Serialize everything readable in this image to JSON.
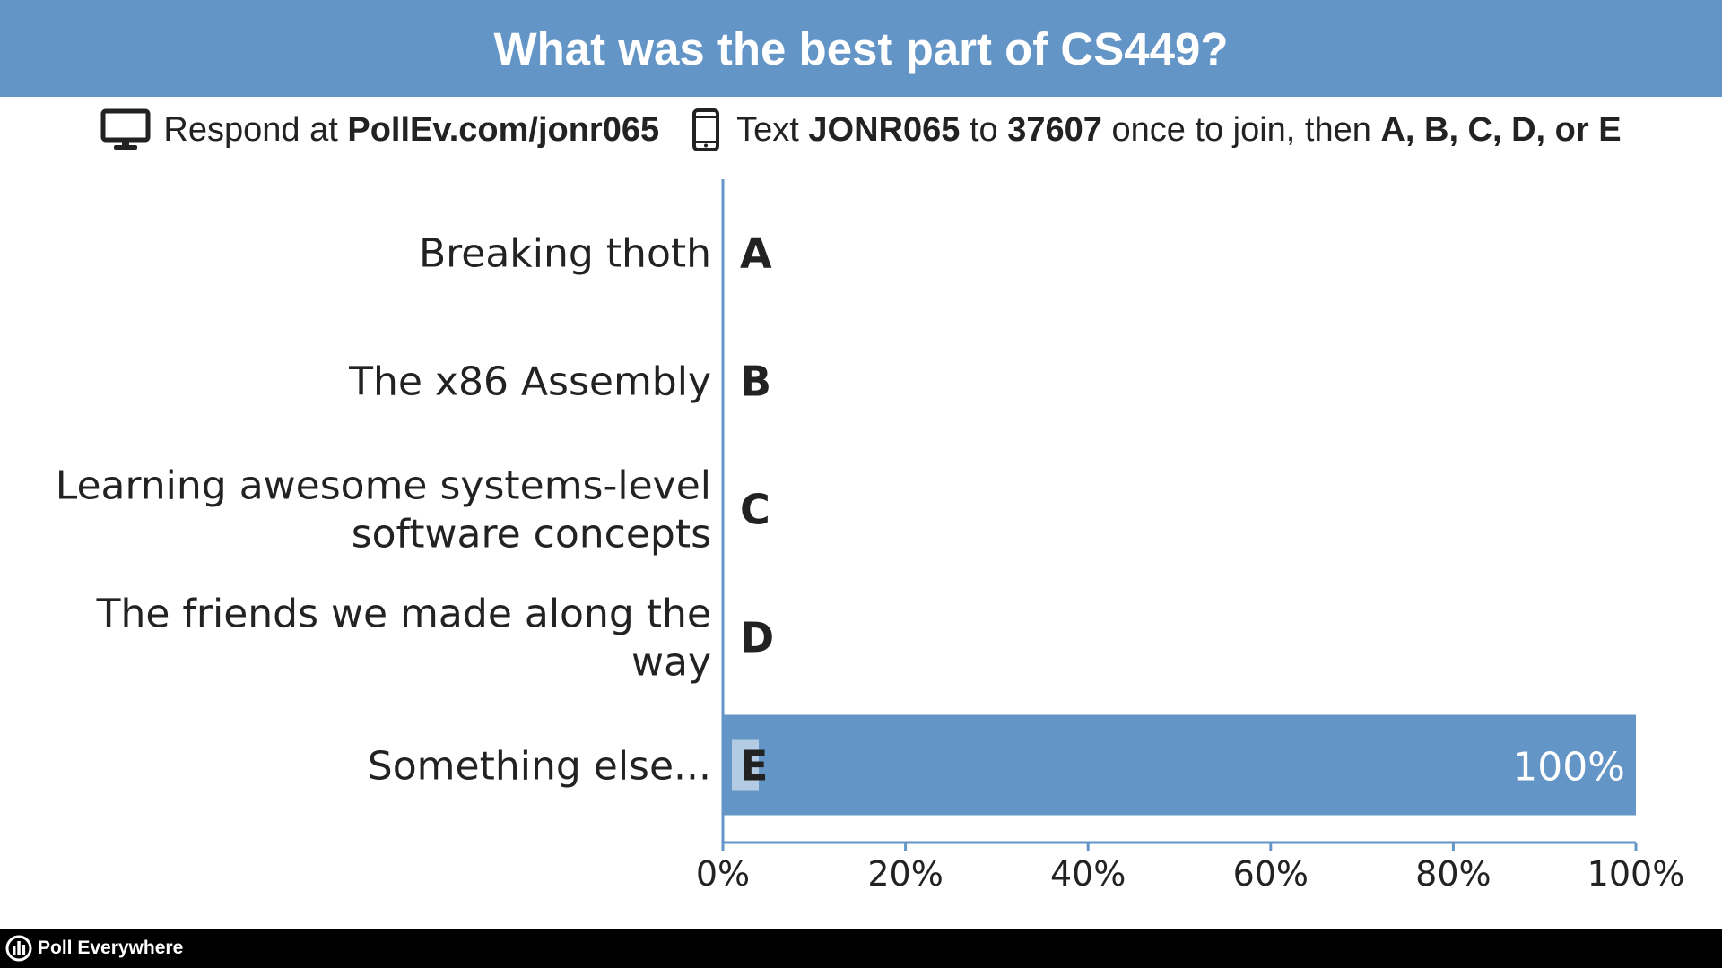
{
  "header": {
    "title": "What was the best part of CS449?"
  },
  "instructions": {
    "web_prefix": "Respond at",
    "web_url": "PollEv.com/jonr065",
    "sms_prefix": "Text",
    "sms_code": "JONR065",
    "sms_to": "to",
    "sms_number": "37607",
    "sms_suffix": "once to join, then",
    "sms_choices": "A, B, C, D, or E"
  },
  "colors": {
    "accent": "#6395c7",
    "letter_highlight": "#b3cbe3",
    "footer_bg": "#000000",
    "text": "#222222",
    "axis": "#6395c7"
  },
  "icons": {
    "web": "monitor-icon",
    "sms": "phone-icon",
    "footer": "poll-everywhere-logo-icon"
  },
  "chart_data": {
    "type": "bar",
    "orientation": "horizontal",
    "categories": [
      {
        "letter": "A",
        "lines": [
          "Breaking thoth"
        ]
      },
      {
        "letter": "B",
        "lines": [
          "The x86 Assembly"
        ]
      },
      {
        "letter": "C",
        "lines": [
          "Learning awesome systems-level",
          "software concepts"
        ]
      },
      {
        "letter": "D",
        "lines": [
          "The friends we made along the",
          "way"
        ]
      },
      {
        "letter": "E",
        "lines": [
          "Something else..."
        ]
      }
    ],
    "values": [
      0,
      0,
      0,
      0,
      100
    ],
    "value_labels": [
      "",
      "",
      "",
      "",
      "100%"
    ],
    "xlim": [
      0,
      100
    ],
    "x_ticks": [
      0,
      20,
      40,
      60,
      80,
      100
    ],
    "x_tick_labels": [
      "0%",
      "20%",
      "40%",
      "60%",
      "80%",
      "100%"
    ],
    "grid": false
  },
  "footer": {
    "brand": "Poll Everywhere"
  }
}
